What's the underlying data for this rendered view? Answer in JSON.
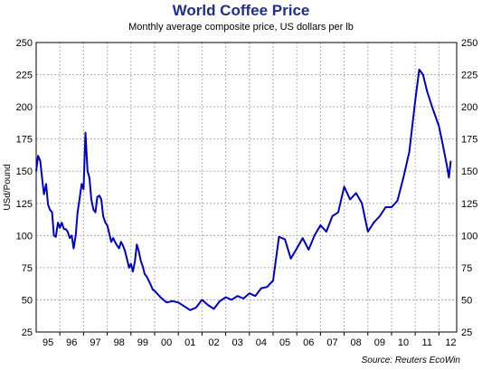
{
  "chart_data": {
    "type": "line",
    "title": "World Coffee Price",
    "subtitle": "Monthly average composite price, US dollars per lb",
    "ylabel": "USd/Pound",
    "xlabel": "",
    "source": "Source: Reuters EcoWin",
    "ylim": [
      25,
      250
    ],
    "yticks": [
      25,
      50,
      75,
      100,
      125,
      150,
      175,
      200,
      225,
      250
    ],
    "xlim": [
      1995.0,
      2012.75
    ],
    "x_tick_labels": [
      "95",
      "96",
      "97",
      "98",
      "99",
      "00",
      "01",
      "02",
      "03",
      "04",
      "05",
      "06",
      "07",
      "08",
      "09",
      "10",
      "11",
      "12"
    ],
    "grid": true,
    "line_color": "#0000cc",
    "series": [
      {
        "x": [
          1995.0,
          1995.08,
          1995.17,
          1995.25,
          1995.33,
          1995.42,
          1995.5,
          1995.58,
          1995.67,
          1995.75,
          1995.83,
          1995.92,
          1996.0,
          1996.08,
          1996.17,
          1996.25,
          1996.33,
          1996.42,
          1996.5,
          1996.58,
          1996.67,
          1996.75,
          1996.83,
          1996.92,
          1997.0,
          1997.08,
          1997.17,
          1997.25,
          1997.33,
          1997.42,
          1997.5,
          1997.58,
          1997.67,
          1997.75,
          1997.83,
          1997.92,
          1998.0,
          1998.08,
          1998.17,
          1998.25,
          1998.33,
          1998.42,
          1998.5,
          1998.58,
          1998.67,
          1998.75,
          1998.83,
          1998.92,
          1999.0,
          1999.08,
          1999.17,
          1999.25,
          1999.33,
          1999.42,
          1999.5,
          1999.58,
          1999.67,
          1999.75,
          1999.83,
          1999.92,
          2000.0,
          2000.25,
          2000.5,
          2000.75,
          2001.0,
          2001.25,
          2001.5,
          2001.75,
          2002.0,
          2002.25,
          2002.5,
          2002.75,
          2003.0,
          2003.25,
          2003.5,
          2003.75,
          2004.0,
          2004.25,
          2004.5,
          2004.75,
          2005.0,
          2005.25,
          2005.5,
          2005.75,
          2006.0,
          2006.25,
          2006.5,
          2006.75,
          2007.0,
          2007.25,
          2007.5,
          2007.75,
          2008.0,
          2008.25,
          2008.5,
          2008.75,
          2009.0,
          2009.25,
          2009.5,
          2009.75,
          2010.0,
          2010.25,
          2010.5,
          2010.75,
          2011.0,
          2011.17,
          2011.33,
          2011.5,
          2011.75,
          2012.0,
          2012.17,
          2012.33,
          2012.42,
          2012.5
        ],
        "values": [
          150,
          162,
          158,
          145,
          132,
          140,
          124,
          120,
          118,
          100,
          99,
          110,
          106,
          110,
          105,
          105,
          103,
          98,
          100,
          90,
          100,
          118,
          128,
          140,
          136,
          180,
          150,
          145,
          128,
          120,
          118,
          130,
          131,
          128,
          115,
          110,
          108,
          102,
          95,
          98,
          95,
          92,
          90,
          95,
          92,
          88,
          82,
          75,
          78,
          72,
          80,
          93,
          88,
          80,
          76,
          70,
          68,
          65,
          62,
          58,
          57,
          52,
          48,
          49,
          48,
          45,
          42,
          44,
          50,
          46,
          43,
          49,
          52,
          50,
          53,
          51,
          55,
          53,
          59,
          60,
          65,
          99,
          97,
          82,
          90,
          98,
          89,
          100,
          108,
          103,
          115,
          118,
          138,
          128,
          133,
          125,
          103,
          110,
          115,
          122,
          122,
          127,
          145,
          165,
          205,
          229,
          225,
          212,
          198,
          185,
          170,
          155,
          145,
          158
        ]
      }
    ]
  }
}
